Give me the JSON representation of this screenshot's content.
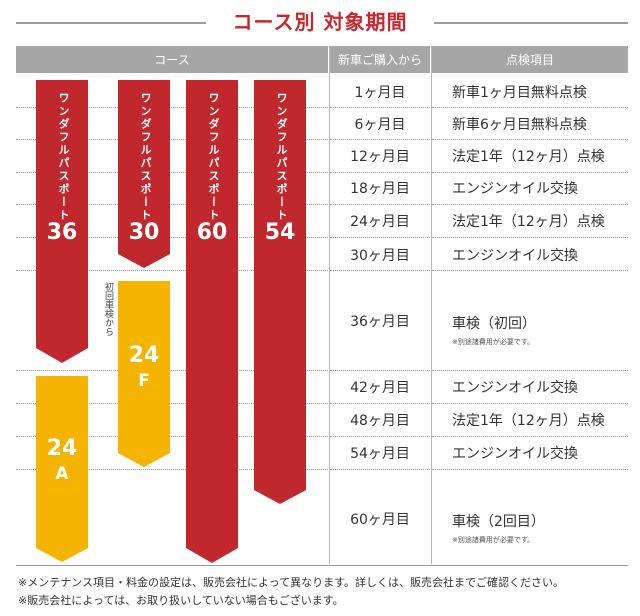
{
  "title": "コース別 対象期間",
  "header": {
    "course": "コース",
    "period": "新車ご購入から",
    "item": "点検項目"
  },
  "rows": [
    {
      "period": "1ヶ月目",
      "item": "新車1ヶ月目無料点検"
    },
    {
      "period": "6ヶ月目",
      "item": "新車6ヶ月目無料点検"
    },
    {
      "period": "12ヶ月目",
      "item": "法定1年（12ヶ月）点検"
    },
    {
      "period": "18ヶ月目",
      "item": "エンジンオイル交換"
    },
    {
      "period": "24ヶ月目",
      "item": "法定1年（12ヶ月）点検"
    },
    {
      "period": "30ヶ月目",
      "item": "エンジンオイル交換"
    },
    {
      "period": "36ヶ月目",
      "item": "車検（初回）",
      "note": "※別途諸費用が必要です。"
    },
    {
      "period": "42ヶ月目",
      "item": "エンジンオイル交換"
    },
    {
      "period": "48ヶ月目",
      "item": "法定1年（12ヶ月）点検"
    },
    {
      "period": "54ヶ月目",
      "item": "エンジンオイル交換"
    },
    {
      "period": "60ヶ月目",
      "item": "車検（2回目）",
      "note": "※別途諸費用が必要です。"
    }
  ],
  "courses": [
    {
      "label": "ワンダフルパスポート",
      "number": "36",
      "color": "#c0282d"
    },
    {
      "label": "ワンダフルパスポート",
      "number": "30",
      "color": "#c0282d"
    },
    {
      "label": "ワンダフルパスポート",
      "number": "60",
      "color": "#c0282d"
    },
    {
      "label": "ワンダフルパスポート",
      "number": "54",
      "color": "#c0282d"
    },
    {
      "number": "24",
      "suffix": "F",
      "color": "#f5b400"
    },
    {
      "number": "24",
      "suffix": "A",
      "color": "#f5b400"
    }
  ],
  "side_note": "初回車検から",
  "footnotes": [
    "※メンテナンス項目・料金の設定は、販売会社によって異なります。詳しくは、販売会社までご確認ください。",
    "※販売会社によっては、お取り扱いしていない場合もございます。"
  ]
}
